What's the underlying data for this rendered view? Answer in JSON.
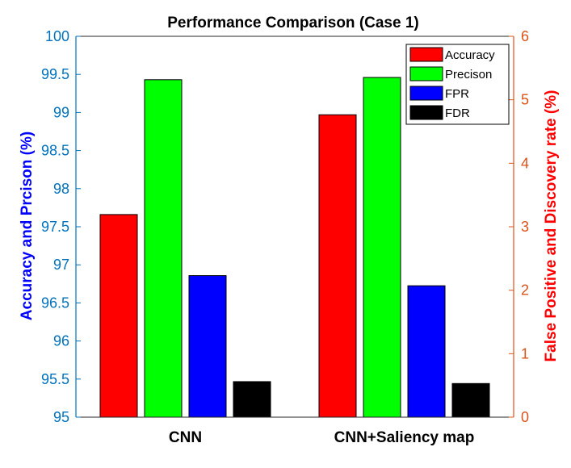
{
  "chart_data": {
    "type": "bar",
    "title": "Performance Comparison  (Case 1)",
    "categories": [
      "CNN",
      "CNN+Saliency map"
    ],
    "ylabel_left": "Accuracy and Prcison (%)",
    "ylabel_right": "False Positive and Discovery rate (%)",
    "ylim_left": [
      95,
      100
    ],
    "ylim_right": [
      0,
      6
    ],
    "yticks_left": [
      "95",
      "95.5",
      "96",
      "96.5",
      "97",
      "97.5",
      "98",
      "98.5",
      "99",
      "99.5",
      "100"
    ],
    "yticks_right": [
      "0",
      "1",
      "2",
      "3",
      "4",
      "5",
      "6"
    ],
    "legend_position": "top-right",
    "grid": false,
    "series": [
      {
        "name": "Accuracy",
        "axis": "left",
        "color": "#ff0000",
        "values": [
          97.66,
          98.97
        ]
      },
      {
        "name": "Precison",
        "axis": "left",
        "color": "#00ff00",
        "values": [
          99.43,
          99.46
        ]
      },
      {
        "name": "FPR",
        "axis": "right",
        "color": "#0000ff",
        "values": [
          2.23,
          2.07
        ]
      },
      {
        "name": "FDR",
        "axis": "right",
        "color": "#000000",
        "values": [
          0.56,
          0.53
        ]
      }
    ]
  },
  "colors": {
    "left_axis": "#0072bd",
    "right_axis": "#d95319",
    "left_label": "#0000ff",
    "right_label": "#ff0000"
  }
}
